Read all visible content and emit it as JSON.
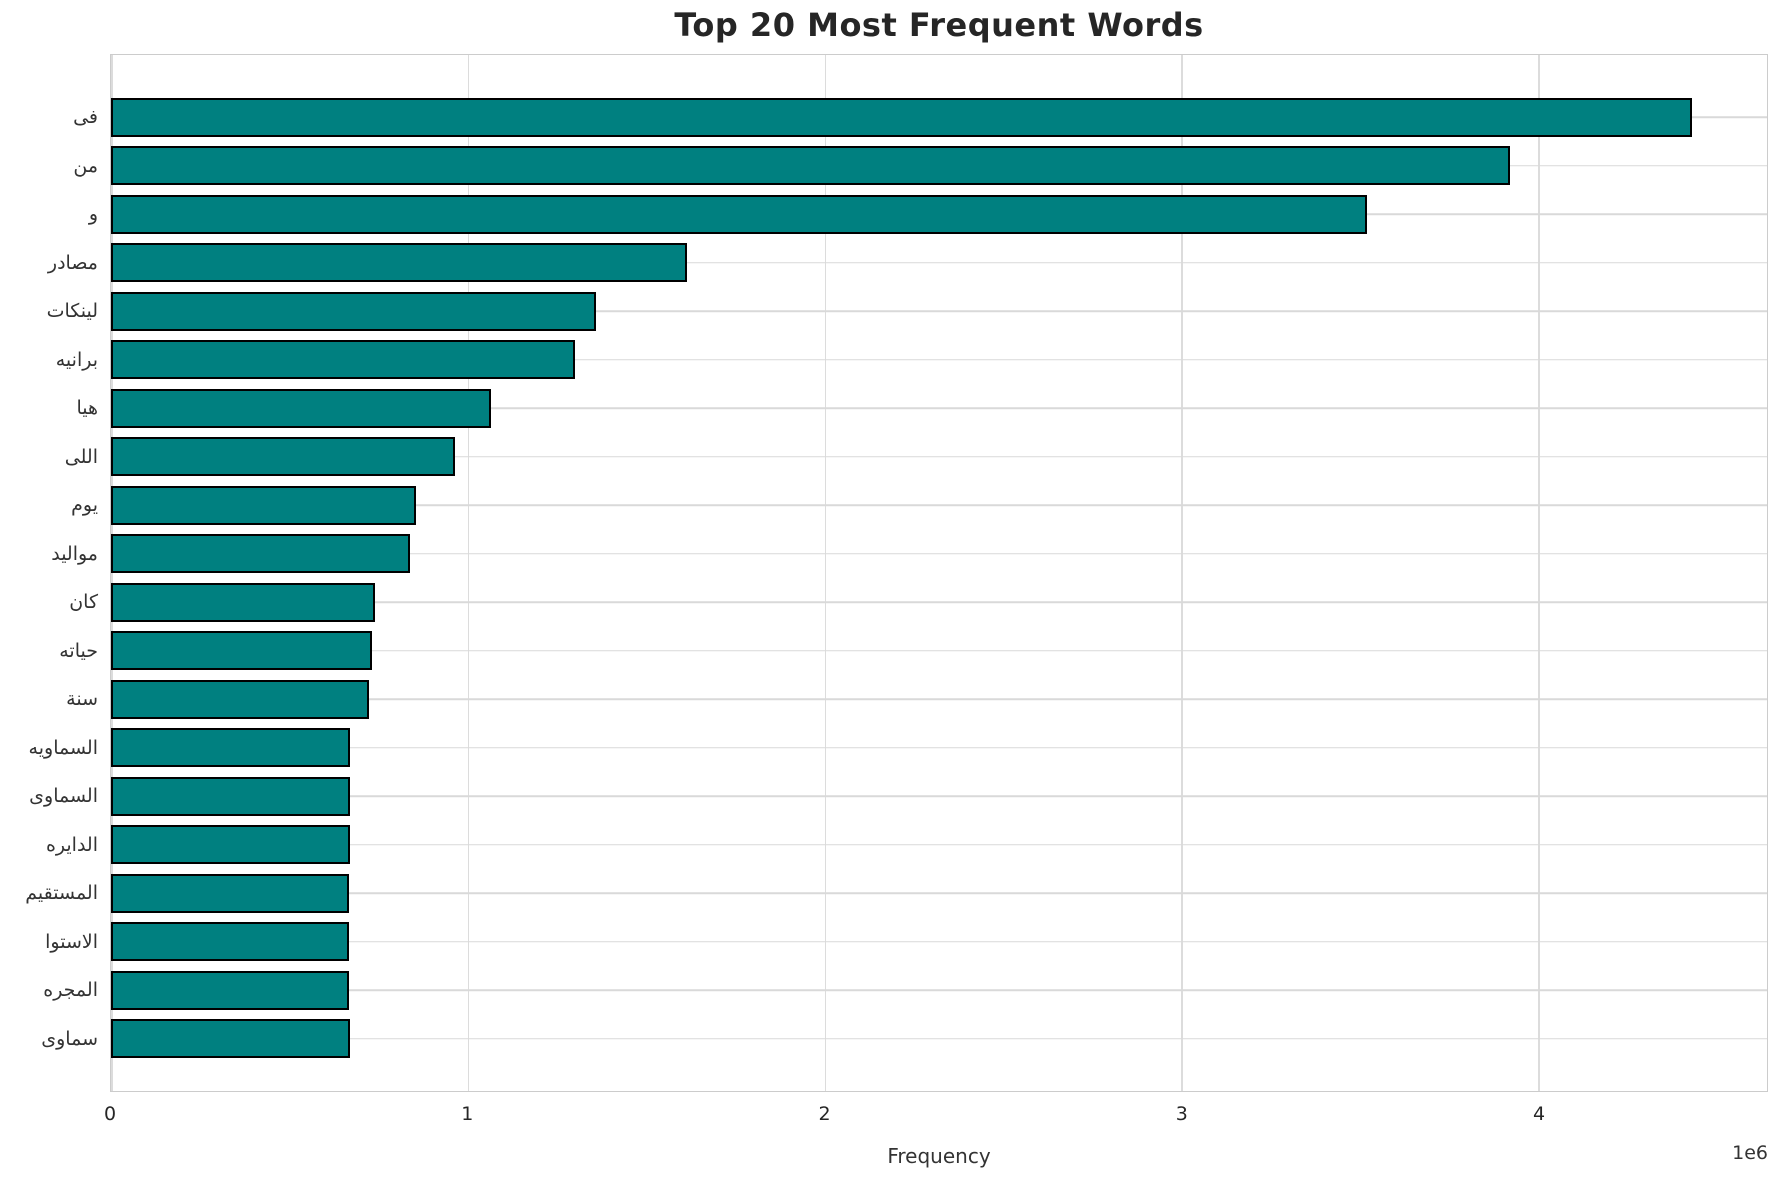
{
  "chart_data": {
    "type": "bar",
    "orientation": "horizontal",
    "title": "Top 20 Most Frequent Words",
    "xlabel": "Frequency",
    "ylabel": "",
    "offset_text": "1e6",
    "categories": [
      "فى",
      "من",
      "و",
      "مصادر",
      "لينكات",
      "برانيه",
      "هيا",
      "اللى",
      "يوم",
      "مواليد",
      "كان",
      "حياته",
      "سنة",
      "السماويه",
      "السماوى",
      "الدايره",
      "المستقيم",
      "الاستوا",
      "المجره",
      "سماوى"
    ],
    "values": [
      4430000,
      3920000,
      3520000,
      1615000,
      1360000,
      1300000,
      1065000,
      965000,
      856000,
      838000,
      739000,
      732000,
      722000,
      670000,
      670000,
      669000,
      668000,
      668000,
      667000,
      671000
    ],
    "xlim": [
      0,
      4641000
    ],
    "x_tick_values": [
      0,
      1000000,
      2000000,
      3000000,
      4000000
    ],
    "x_tick_labels": [
      "0",
      "1",
      "2",
      "3",
      "4"
    ],
    "grid": true,
    "legend": false,
    "bar_color": "#008080",
    "bar_edge_color": "#000000",
    "grid_color": "#d9d9d9",
    "spine_color": "#cccccc",
    "title_color": "#262626",
    "tick_color": "#262626"
  }
}
